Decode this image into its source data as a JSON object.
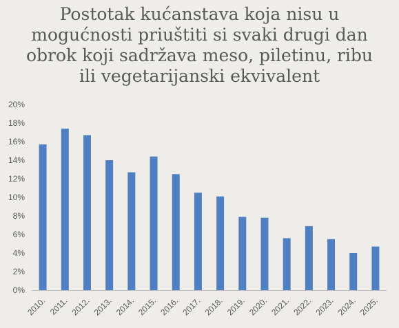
{
  "chart_data": {
    "type": "bar",
    "title_lines": [
      "Postotak kućanstava koja nisu u",
      "mogućnosti priuštiti si svaki drugi dan",
      "obrok koji sadržava meso, piletinu, ribu",
      "ili vegetarijanski ekvivalent"
    ],
    "categories": [
      "2010.",
      "2011.",
      "2012.",
      "2013.",
      "2014.",
      "2015.",
      "2016.",
      "2017.",
      "2018.",
      "2019.",
      "2020.",
      "2021.",
      "2022.",
      "2023.",
      "2024.",
      "2025."
    ],
    "values": [
      15.7,
      17.4,
      16.7,
      14.0,
      12.7,
      14.4,
      12.5,
      10.5,
      10.1,
      7.9,
      7.8,
      5.6,
      6.9,
      5.5,
      4.0,
      4.7
    ],
    "ylim": [
      0,
      20
    ],
    "yticks": [
      "0%",
      "2%",
      "4%",
      "6%",
      "8%",
      "10%",
      "12%",
      "14%",
      "16%",
      "18%",
      "20%"
    ],
    "grid": false,
    "colors": {
      "bar": "#4F7FC1",
      "axis": "#BFBFBF",
      "text": "#595959"
    }
  }
}
